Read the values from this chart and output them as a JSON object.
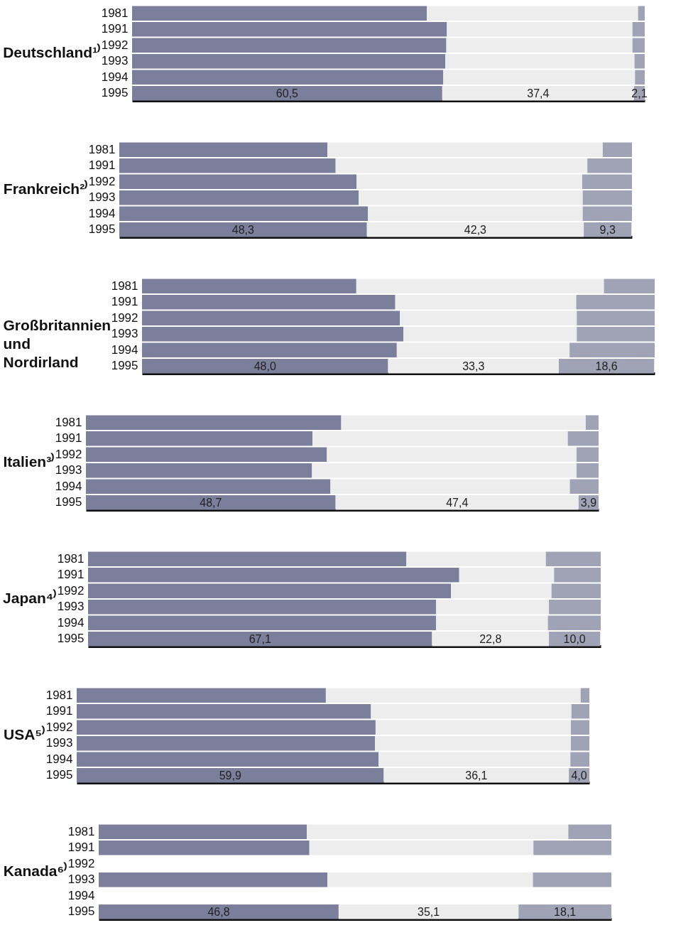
{
  "chart_data": [
    {
      "type": "bar",
      "orientation": "horizontal",
      "stacked": true,
      "title": "Deutschland¹⁾",
      "categories": [
        "1981",
        "1991",
        "1992",
        "1993",
        "1994",
        "1995"
      ],
      "tick_labels": "y",
      "series": [
        {
          "color": "#7b7f9c",
          "values": [
            57.5,
            61.4,
            61.3,
            61.1,
            60.7,
            60.5
          ],
          "value_labels": [
            null,
            null,
            null,
            null,
            null,
            "60,5"
          ]
        },
        {
          "color": "#ededed",
          "values": [
            41.2,
            36.2,
            36.3,
            36.9,
            37.4,
            37.4
          ],
          "value_labels": [
            null,
            null,
            null,
            null,
            null,
            "37,4"
          ]
        },
        {
          "color": "#a0a3b5",
          "values": [
            1.3,
            2.4,
            2.4,
            2.0,
            1.9,
            2.1
          ],
          "value_labels": [
            null,
            null,
            null,
            null,
            null,
            "2,1"
          ]
        }
      ]
    },
    {
      "type": "bar",
      "orientation": "horizontal",
      "stacked": true,
      "title": "Frankreich²⁾",
      "categories": [
        "1981",
        "1991",
        "1992",
        "1993",
        "1994",
        "1995"
      ],
      "tick_labels": "y",
      "series": [
        {
          "color": "#7b7f9c",
          "values": [
            40.6,
            42.2,
            46.3,
            46.7,
            48.5,
            48.3
          ],
          "value_labels": [
            null,
            null,
            null,
            null,
            null,
            "48,3"
          ]
        },
        {
          "color": "#ededed",
          "values": [
            53.7,
            49.1,
            44.0,
            43.7,
            41.9,
            42.3
          ],
          "value_labels": [
            null,
            null,
            null,
            null,
            null,
            "42,3"
          ]
        },
        {
          "color": "#a0a3b5",
          "values": [
            5.7,
            8.7,
            9.7,
            9.6,
            9.6,
            9.3
          ],
          "value_labels": [
            null,
            null,
            null,
            null,
            null,
            "9,3"
          ]
        }
      ]
    },
    {
      "type": "bar",
      "orientation": "horizontal",
      "stacked": true,
      "title": "Großbritannien und Nordirland",
      "categories": [
        "1981",
        "1991",
        "1992",
        "1993",
        "1994",
        "1995"
      ],
      "tick_labels": "y",
      "series": [
        {
          "color": "#7b7f9c",
          "values": [
            41.8,
            49.4,
            50.3,
            51.0,
            49.7,
            48.0
          ],
          "value_labels": [
            null,
            null,
            null,
            null,
            null,
            "48,0"
          ]
        },
        {
          "color": "#ededed",
          "values": [
            48.3,
            35.3,
            34.5,
            33.8,
            33.7,
            33.3
          ],
          "value_labels": [
            null,
            null,
            null,
            null,
            null,
            "33,3"
          ]
        },
        {
          "color": "#a0a3b5",
          "values": [
            9.9,
            15.3,
            15.2,
            15.2,
            16.6,
            18.6
          ],
          "value_labels": [
            null,
            null,
            null,
            null,
            null,
            "18,6"
          ]
        }
      ]
    },
    {
      "type": "bar",
      "orientation": "horizontal",
      "stacked": true,
      "title": "Italien³⁾",
      "categories": [
        "1981",
        "1991",
        "1992",
        "1993",
        "1994",
        "1995"
      ],
      "tick_labels": "y",
      "series": [
        {
          "color": "#7b7f9c",
          "values": [
            49.8,
            44.2,
            47.0,
            44.1,
            47.7,
            48.7
          ],
          "value_labels": [
            null,
            null,
            null,
            null,
            null,
            "48,7"
          ]
        },
        {
          "color": "#ededed",
          "values": [
            47.7,
            49.8,
            48.7,
            51.6,
            46.7,
            47.4
          ],
          "value_labels": [
            null,
            null,
            null,
            null,
            null,
            "47,4"
          ]
        },
        {
          "color": "#a0a3b5",
          "values": [
            2.5,
            6.0,
            4.3,
            4.3,
            5.6,
            3.9
          ],
          "value_labels": [
            null,
            null,
            null,
            null,
            null,
            "3,9"
          ]
        }
      ]
    },
    {
      "type": "bar",
      "orientation": "horizontal",
      "stacked": true,
      "title": "Japan⁴⁾",
      "categories": [
        "1981",
        "1991",
        "1992",
        "1993",
        "1994",
        "1995"
      ],
      "tick_labels": "y",
      "series": [
        {
          "color": "#7b7f9c",
          "values": [
            62.1,
            72.4,
            70.8,
            67.9,
            67.9,
            67.1
          ],
          "value_labels": [
            null,
            null,
            null,
            null,
            null,
            "67,1"
          ]
        },
        {
          "color": "#ededed",
          "values": [
            27.2,
            18.5,
            19.6,
            22.0,
            21.8,
            22.8
          ],
          "value_labels": [
            null,
            null,
            null,
            null,
            null,
            "22,8"
          ]
        },
        {
          "color": "#a0a3b5",
          "values": [
            10.7,
            9.1,
            9.6,
            10.1,
            10.3,
            10.0
          ],
          "value_labels": [
            null,
            null,
            null,
            null,
            null,
            "10,0"
          ]
        }
      ]
    },
    {
      "type": "bar",
      "orientation": "horizontal",
      "stacked": true,
      "title": "USA⁵⁾",
      "categories": [
        "1981",
        "1991",
        "1992",
        "1993",
        "1994",
        "1995"
      ],
      "tick_labels": "y",
      "series": [
        {
          "color": "#7b7f9c",
          "values": [
            48.6,
            57.4,
            58.3,
            58.2,
            58.9,
            59.9
          ],
          "value_labels": [
            null,
            null,
            null,
            null,
            null,
            "59,9"
          ]
        },
        {
          "color": "#ededed",
          "values": [
            49.7,
            39.1,
            38.1,
            38.2,
            37.4,
            36.1
          ],
          "value_labels": [
            null,
            null,
            null,
            null,
            null,
            "36,1"
          ]
        },
        {
          "color": "#a0a3b5",
          "values": [
            1.7,
            3.5,
            3.6,
            3.6,
            3.7,
            4.0
          ],
          "value_labels": [
            null,
            null,
            null,
            null,
            null,
            "4,0"
          ]
        }
      ]
    },
    {
      "type": "bar",
      "orientation": "horizontal",
      "stacked": true,
      "title": "Kanada⁶⁾",
      "categories": [
        "1981",
        "1991",
        "1992",
        "1993",
        "1994",
        "1995"
      ],
      "tick_labels": "y",
      "series": [
        {
          "color": "#7b7f9c",
          "values": [
            40.6,
            41.1,
            null,
            44.6,
            null,
            46.8
          ],
          "value_labels": [
            null,
            null,
            null,
            null,
            null,
            "46,8"
          ]
        },
        {
          "color": "#ededed",
          "values": [
            51.0,
            43.7,
            null,
            40.1,
            null,
            35.1
          ],
          "value_labels": [
            null,
            null,
            null,
            null,
            null,
            "35,1"
          ]
        },
        {
          "color": "#a0a3b5",
          "values": [
            8.4,
            15.2,
            null,
            15.3,
            null,
            18.1
          ],
          "value_labels": [
            null,
            null,
            null,
            null,
            null,
            "18,1"
          ]
        }
      ]
    }
  ]
}
